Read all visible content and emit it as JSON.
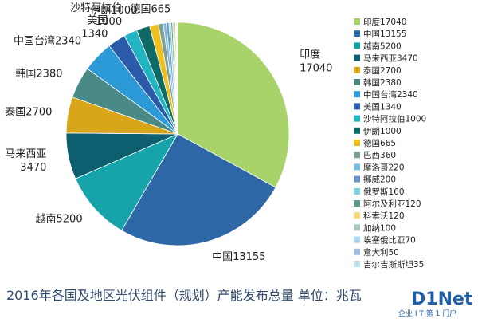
{
  "chart_data": {
    "type": "pie",
    "title": "2016年各国及地区光伏组件（规划）产能发布总量 单位：兆瓦",
    "legend_position": "right",
    "slices": [
      {
        "label": "印度",
        "value": 17040,
        "legend": "印度17040",
        "color": "#a8d26a"
      },
      {
        "label": "中国",
        "value": 13155,
        "legend": "中国13155",
        "color": "#2e67a6"
      },
      {
        "label": "越南",
        "value": 5200,
        "legend": "越南5200",
        "color": "#17a3aa"
      },
      {
        "label": "马来西亚",
        "value": 3470,
        "legend": "马来西亚3470",
        "color": "#0d5e6e"
      },
      {
        "label": "泰国",
        "value": 2700,
        "legend": "泰国2700",
        "color": "#d9a51b"
      },
      {
        "label": "韩国",
        "value": 2380,
        "legend": "韩国2380",
        "color": "#4a8a86"
      },
      {
        "label": "中国台湾",
        "value": 2340,
        "legend": "中国台湾2340",
        "color": "#2b9ad6"
      },
      {
        "label": "美国",
        "value": 1340,
        "legend": "美国1340",
        "color": "#2a5aa8"
      },
      {
        "label": "沙特阿拉伯",
        "value": 1000,
        "legend": "沙特阿拉伯1000",
        "color": "#22b4c2"
      },
      {
        "label": "伊朗",
        "value": 1000,
        "legend": "伊朗1000",
        "color": "#0f6a66"
      },
      {
        "label": "德国",
        "value": 665,
        "legend": "德国665",
        "color": "#f0c020"
      },
      {
        "label": "巴西",
        "value": 360,
        "legend": "巴西360",
        "color": "#7e9e9a"
      },
      {
        "label": "摩洛哥",
        "value": 220,
        "legend": "摩洛哥220",
        "color": "#78b9e4"
      },
      {
        "label": "挪威",
        "value": 200,
        "legend": "挪威200",
        "color": "#6d96cc"
      },
      {
        "label": "俄罗斯",
        "value": 160,
        "legend": "俄罗斯160",
        "color": "#7cd1da"
      },
      {
        "label": "阿尔及利亚",
        "value": 120,
        "legend": "阿尔及利亚120",
        "color": "#5a9a92"
      },
      {
        "label": "科索沃",
        "value": 120,
        "legend": "科索沃120",
        "color": "#f4d87a"
      },
      {
        "label": "加纳",
        "value": 100,
        "legend": "加纳100",
        "color": "#a9c7c2"
      },
      {
        "label": "埃塞俄比亚",
        "value": 70,
        "legend": "埃塞俄比亚70",
        "color": "#a6d3ef"
      },
      {
        "label": "意大利",
        "value": 50,
        "legend": "意大利50",
        "color": "#a7bde2"
      },
      {
        "label": "吉尔吉斯斯坦",
        "value": 35,
        "legend": "吉尔吉斯斯坦35",
        "color": "#b9e5ea"
      }
    ],
    "data_labels": [
      {
        "lines": [
          "印度",
          "17040"
        ],
        "slice": 0
      },
      {
        "lines": [
          "中国13155"
        ],
        "slice": 1
      },
      {
        "lines": [
          "越南5200"
        ],
        "slice": 2
      },
      {
        "lines": [
          "马来西亚",
          "3470"
        ],
        "slice": 3
      },
      {
        "lines": [
          "泰国2700"
        ],
        "slice": 4
      },
      {
        "lines": [
          "韩国2380"
        ],
        "slice": 5
      },
      {
        "lines": [
          "中国台湾2340"
        ],
        "slice": 6
      },
      {
        "lines": [
          "美国",
          "1340"
        ],
        "slice": 7
      },
      {
        "lines": [
          "沙特阿拉伯",
          "1000"
        ],
        "slice": 8
      },
      {
        "lines": [
          "伊朗1000"
        ],
        "slice": 9
      },
      {
        "lines": [
          "德国665"
        ],
        "slice": 10
      }
    ]
  },
  "watermark": {
    "brand": "D1Net",
    "sub": "企业 I T 第 1 门户"
  }
}
